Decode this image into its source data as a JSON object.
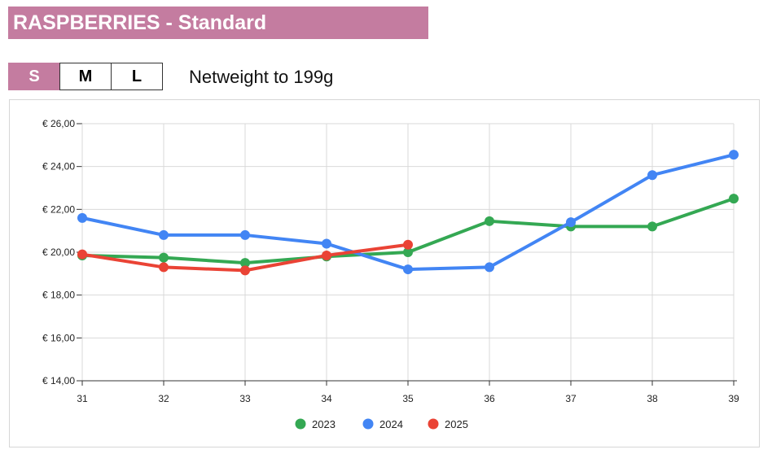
{
  "header": {
    "title": "RASPBERRIES - Standard"
  },
  "size_tabs": [
    {
      "label": "S",
      "active": true
    },
    {
      "label": "M",
      "active": false
    },
    {
      "label": "L",
      "active": false
    }
  ],
  "weight_label": "Netweight to 199g",
  "chart_data": {
    "type": "line",
    "x": [
      31,
      32,
      33,
      34,
      35,
      36,
      37,
      38,
      39
    ],
    "x_tick_labels": [
      "31",
      "32",
      "33",
      "34",
      "35",
      "36",
      "37",
      "38",
      "39"
    ],
    "ylim": [
      14,
      26
    ],
    "y_ticks": [
      14,
      16,
      18,
      20,
      22,
      24,
      26
    ],
    "y_tick_labels": [
      "€ 14,00",
      "€ 16,00",
      "€ 18,00",
      "€ 20,00",
      "€ 22,00",
      "€ 24,00",
      "€ 26,00"
    ],
    "grid": true,
    "legend_position": "bottom",
    "series": [
      {
        "name": "2023",
        "color": "#34a853",
        "values": [
          19.85,
          19.75,
          19.5,
          19.8,
          20.0,
          21.45,
          21.2,
          21.2,
          22.5
        ]
      },
      {
        "name": "2024",
        "color": "#4285f4",
        "values": [
          21.6,
          20.8,
          20.8,
          20.4,
          19.2,
          19.3,
          21.4,
          23.6,
          24.55
        ]
      },
      {
        "name": "2025",
        "color": "#ea4335",
        "values": [
          19.9,
          19.3,
          19.15,
          19.85,
          20.35,
          null,
          null,
          null,
          null
        ]
      }
    ]
  }
}
